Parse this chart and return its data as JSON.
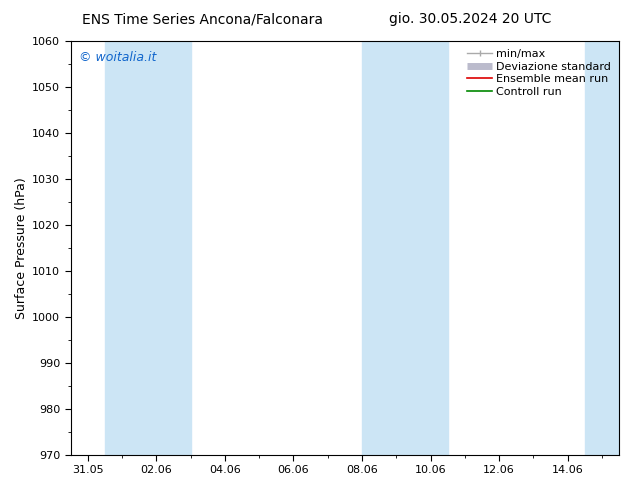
{
  "title_left": "ENS Time Series Ancona/Falconara",
  "title_right": "gio. 30.05.2024 20 UTC",
  "ylabel": "Surface Pressure (hPa)",
  "ylim": [
    970,
    1060
  ],
  "yticks": [
    970,
    980,
    990,
    1000,
    1010,
    1020,
    1030,
    1040,
    1050,
    1060
  ],
  "xtick_labels": [
    "31.05",
    "02.06",
    "04.06",
    "06.06",
    "08.06",
    "10.06",
    "12.06",
    "14.06"
  ],
  "xtick_positions": [
    0.0,
    2.0,
    4.0,
    6.0,
    8.0,
    10.0,
    12.0,
    14.0
  ],
  "xlim": [
    -0.5,
    15.5
  ],
  "shaded_bands": [
    {
      "xmin": 0.5,
      "xmax": 3.0
    },
    {
      "xmin": 8.0,
      "xmax": 10.5
    },
    {
      "xmin": 14.5,
      "xmax": 15.5
    }
  ],
  "band_color": "#cce5f5",
  "watermark": "© woitalia.it",
  "watermark_color": "#1166cc",
  "legend_entries": [
    {
      "label": "min/max",
      "color": "#aaaaaa",
      "lw": 1.0,
      "style": "errorbar"
    },
    {
      "label": "Deviazione standard",
      "color": "#bbbbcc",
      "lw": 5,
      "style": "band"
    },
    {
      "label": "Ensemble mean run",
      "color": "#dd0000",
      "lw": 1.2,
      "style": "line"
    },
    {
      "label": "Controll run",
      "color": "#008800",
      "lw": 1.2,
      "style": "line"
    }
  ],
  "bg_color": "#ffffff",
  "title_fontsize": 10,
  "axis_label_fontsize": 9,
  "tick_fontsize": 8,
  "watermark_fontsize": 9,
  "legend_fontsize": 8
}
